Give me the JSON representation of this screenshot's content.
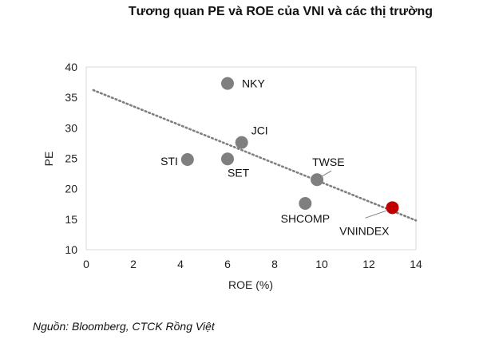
{
  "title": "Tương quan PE và ROE của VNI và các thị trường",
  "source": "Nguồn: Bloomberg, CTCK Rồng Việt",
  "colors": {
    "point": "#7f7f7f",
    "highlight_point": "#c00000",
    "highlight_label": "#b01010",
    "trendline": "#7f7f7f",
    "plot_border": "#d9d9d9"
  },
  "chart_data": {
    "type": "scatter",
    "xlabel": "ROE (%)",
    "ylabel": "PE",
    "xlim": [
      0,
      14
    ],
    "ylim": [
      10,
      40
    ],
    "xticks": [
      0,
      2,
      4,
      6,
      8,
      10,
      12,
      14
    ],
    "yticks": [
      10,
      15,
      20,
      25,
      30,
      35,
      40
    ],
    "grid": false,
    "points": [
      {
        "label": "NKY",
        "x": 6.0,
        "y": 37.3,
        "highlight": false
      },
      {
        "label": "JCI",
        "x": 6.6,
        "y": 27.6,
        "highlight": false
      },
      {
        "label": "STI",
        "x": 4.3,
        "y": 24.8,
        "highlight": false
      },
      {
        "label": "SET",
        "x": 6.0,
        "y": 24.9,
        "highlight": false
      },
      {
        "label": "TWSE",
        "x": 9.8,
        "y": 21.5,
        "highlight": false
      },
      {
        "label": "SHCOMP",
        "x": 9.3,
        "y": 17.6,
        "highlight": false
      },
      {
        "label": "VNINDEX",
        "x": 13.0,
        "y": 16.9,
        "highlight": true
      }
    ],
    "trendline": {
      "style": "dotted",
      "from": {
        "x": 0.3,
        "y": 36.2
      },
      "to": {
        "x": 14.0,
        "y": 14.8
      }
    }
  }
}
